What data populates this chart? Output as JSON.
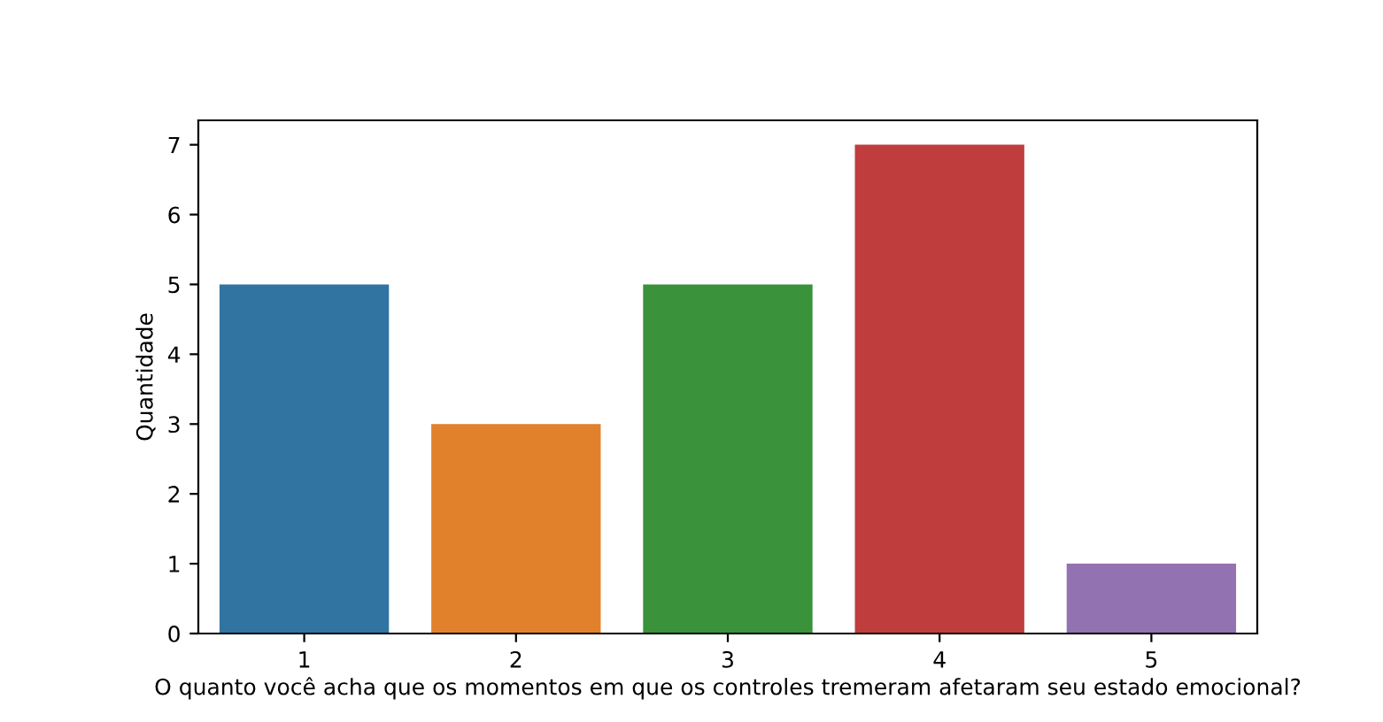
{
  "chart_data": {
    "type": "bar",
    "xlabel": "O quanto você acha que os momentos em que os controles tremeram afetaram seu estado emocional?",
    "ylabel": "Quantidade",
    "categories": [
      "1",
      "2",
      "3",
      "4",
      "5"
    ],
    "values": [
      5,
      3,
      5,
      7,
      1
    ],
    "colors": [
      "#3274a1",
      "#e1812c",
      "#3a923a",
      "#c03d3e",
      "#9372b2"
    ],
    "ylim": [
      0,
      7.35
    ],
    "yticks": [
      0,
      1,
      2,
      3,
      4,
      5,
      6,
      7
    ],
    "grid": false,
    "legend": false
  }
}
